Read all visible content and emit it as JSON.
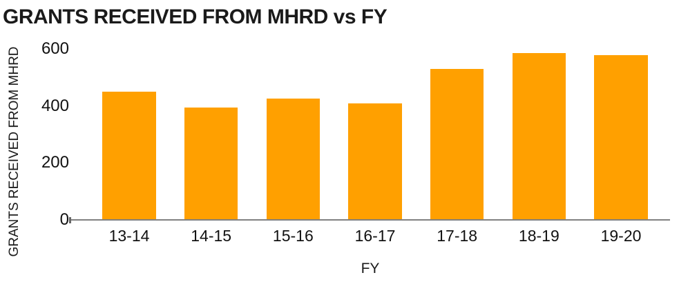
{
  "chart_data": {
    "type": "bar",
    "title": "GRANTS RECEIVED FROM MHRD vs FY",
    "xlabel": "FY",
    "ylabel": "GRANTS RECEIVED FROM MHRD",
    "categories": [
      "13-14",
      "14-15",
      "15-16",
      "16-17",
      "17-18",
      "18-19",
      "19-20"
    ],
    "values": [
      450,
      395,
      425,
      410,
      530,
      585,
      580
    ],
    "ylim": [
      0,
      600
    ],
    "yticks": [
      0,
      200,
      400,
      600
    ],
    "grid": false,
    "legend": false,
    "bar_color": "#FFA000",
    "axis_color": "#808080",
    "text_color": "#1a1a1a",
    "background": "#ffffff"
  }
}
